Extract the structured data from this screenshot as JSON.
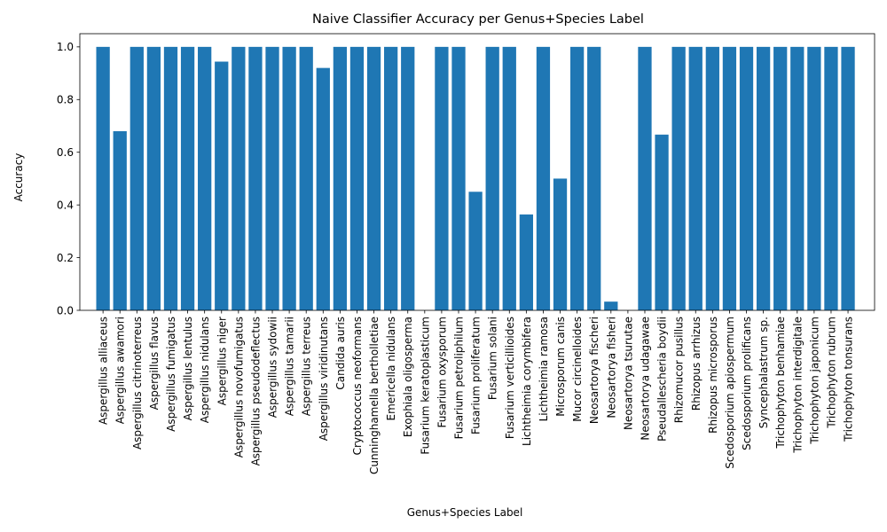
{
  "chart_data": {
    "type": "bar",
    "title": "Naive Classifier Accuracy per Genus+Species Label",
    "xlabel": "Genus+Species Label",
    "ylabel": "Accuracy",
    "ylim": [
      0,
      1.05
    ],
    "yticks": [
      "0.0",
      "0.2",
      "0.4",
      "0.6",
      "0.8",
      "1.0"
    ],
    "ytick_values": [
      0,
      0.2,
      0.4,
      0.6,
      0.8,
      1.0
    ],
    "grid": false,
    "bar_color": "#1f77b4",
    "categories": [
      "Aspergillus alliaceus",
      "Aspergillus awamori",
      "Aspergillus citrinoterreus",
      "Aspergillus flavus",
      "Aspergillus fumigatus",
      "Aspergillus lentulus",
      "Aspergillus nidulans",
      "Aspergillus niger",
      "Aspergillus novofumigatus",
      "Aspergillus pseudodeflectus",
      "Aspergillus sydowii",
      "Aspergillus tamarii",
      "Aspergillus terreus",
      "Aspergillus viridinutans",
      "Candida auris",
      "Cryptococcus neoformans",
      "Cunninghamella bertholletiae",
      "Emericella nidulans",
      "Exophiala oligosperma",
      "Fusarium keratoplasticum",
      "Fusarium oxysporum",
      "Fusarium petroliphilum",
      "Fusarium proliferatum",
      "Fusarium solani",
      "Fusarium verticillioides",
      "Lichtheimia corymbifera",
      "Lichtheimia ramosa",
      "Microsporum canis",
      "Mucor circinelloides",
      "Neosartorya fischeri",
      "Neosartorya fisheri",
      "Neosartorya tsurutae",
      "Neosartorya udagawae",
      "Pseudallescheria boydii",
      "Rhizomucor pusillus",
      "Rhizopus arrhizus",
      "Rhizopus microsporus",
      "Scedosporium apiospermum",
      "Scedosporium prolificans",
      "Syncephalastrum sp.",
      "Trichophyton benhamiae",
      "Trichophyton interdigitale",
      "Trichophyton japonicum",
      "Trichophyton rubrum",
      "Trichophyton tonsurans"
    ],
    "values": [
      1.0,
      0.68,
      1.0,
      1.0,
      1.0,
      1.0,
      1.0,
      0.944,
      1.0,
      1.0,
      1.0,
      1.0,
      1.0,
      0.92,
      1.0,
      1.0,
      1.0,
      1.0,
      1.0,
      0.0,
      1.0,
      1.0,
      0.45,
      1.0,
      1.0,
      0.364,
      1.0,
      0.5,
      1.0,
      1.0,
      0.033,
      0.0,
      1.0,
      0.667,
      1.0,
      1.0,
      1.0,
      1.0,
      1.0,
      1.0,
      1.0,
      1.0,
      1.0,
      1.0,
      1.0
    ]
  }
}
